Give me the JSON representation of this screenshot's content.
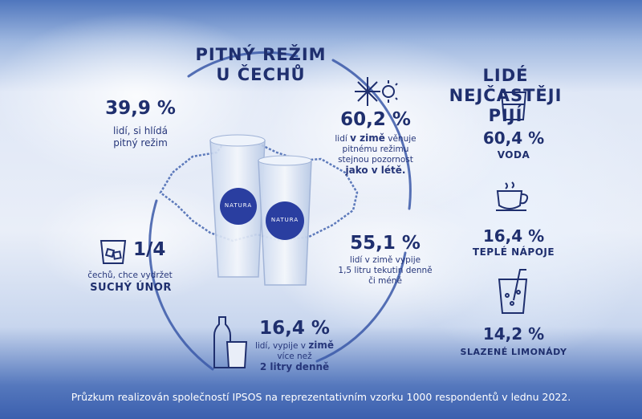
{
  "left_title_line1": "PITNÝ REŽIM",
  "left_title_line2": "U ČECHŮ",
  "right_title_line1": "LIDÉ",
  "right_title_line2": "NEJČASTĚJI PIJÍ",
  "stat_hlida": {
    "value": "39,9 %",
    "line1": "lidí,  si hlídá",
    "line2": "pitný režim"
  },
  "stat_zima": {
    "value": "60,2 %",
    "text_pre": "lidí ",
    "text_bold": "v zimě",
    "text_post": " věnuje",
    "line2": "pitnému režimu",
    "line3": "stejnou pozornost",
    "line4": "jako v létě."
  },
  "stat_sucho": {
    "value": "1/4",
    "line1": "čechů, chce vydržet",
    "line2": "SUCHÝ ÚNOR"
  },
  "stat_litr": {
    "value": "55,1 %",
    "line1": "lidí v zimě vypije",
    "line2": "1,5 litru tekutin denně",
    "line3": "či méně"
  },
  "stat_2l": {
    "value": "16,4 %",
    "line1_pre": "lidí, vypije v ",
    "line1_bold": "zimě",
    "line2": "více než",
    "line3": "2 litry denně"
  },
  "drinks": [
    {
      "value": "60,4 %",
      "label": "VODA"
    },
    {
      "value": "16,4 %",
      "label": "TEPLÉ NÁPOJE"
    },
    {
      "value": "14,2 %",
      "label": "SLAZENÉ LIMONÁDY"
    }
  ],
  "brand_label": "NATURA",
  "footer": "Průzkum realizován společností IPSOS na reprezentativním vzorku 1000 respondentů v lednu 2022."
}
